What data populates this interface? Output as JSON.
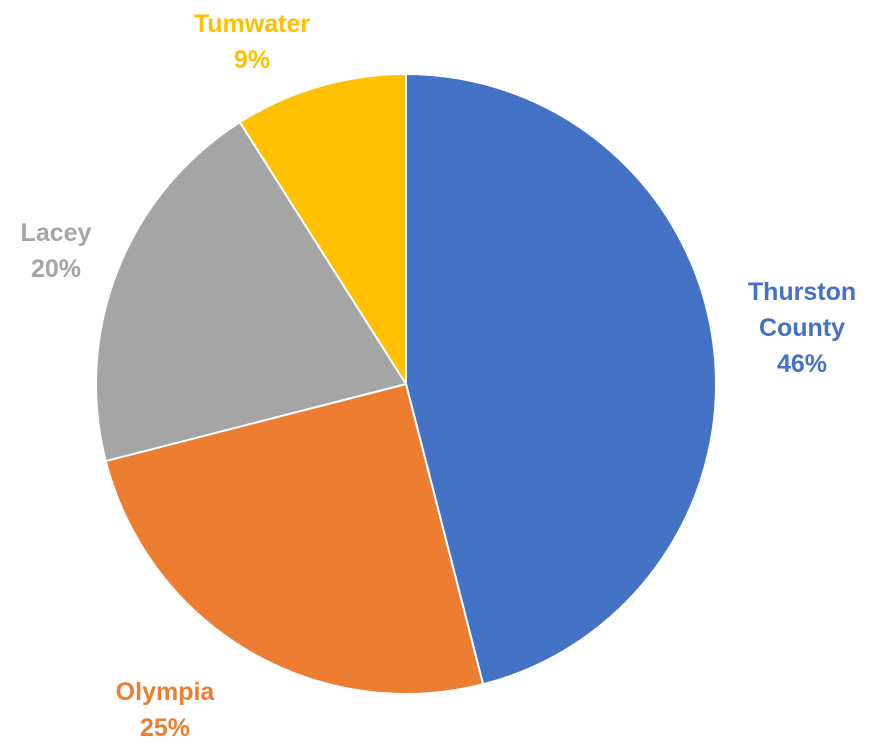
{
  "chart_data": {
    "type": "pie",
    "title": "",
    "start_angle_deg": 0,
    "direction": "clockwise",
    "slices": [
      {
        "label_lines": [
          "Thurston",
          "County"
        ],
        "percent_label": "46%",
        "value": 46,
        "color": "#4472C4"
      },
      {
        "label_lines": [
          "Olympia"
        ],
        "percent_label": "25%",
        "value": 25,
        "color": "#ED7D31"
      },
      {
        "label_lines": [
          "Lacey"
        ],
        "percent_label": "20%",
        "value": 20,
        "color": "#A5A5A5"
      },
      {
        "label_lines": [
          "Tumwater"
        ],
        "percent_label": "9%",
        "value": 9,
        "color": "#FFC000"
      }
    ]
  }
}
